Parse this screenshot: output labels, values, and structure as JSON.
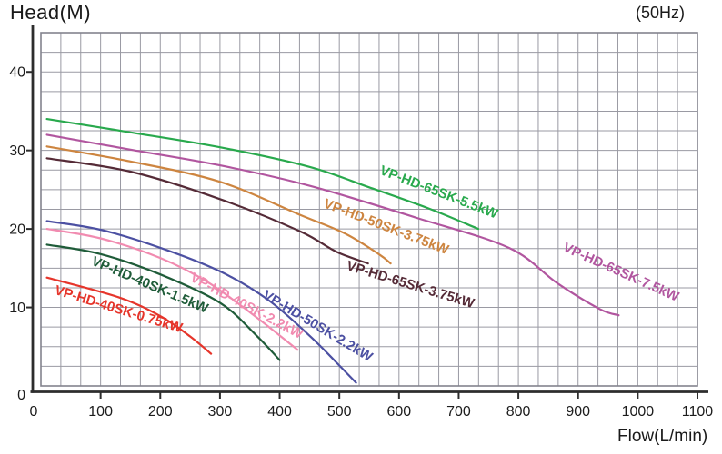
{
  "header": {
    "y_axis_title": "Head(M)",
    "frequency": "(50Hz)",
    "x_axis_title": "Flow(L/min)"
  },
  "chart_data": {
    "type": "line",
    "title": "",
    "xlabel": "Flow(L/min)",
    "ylabel": "Head(M)",
    "frequency_note": "(50Hz)",
    "xlim": [
      0,
      1100
    ],
    "ylim": [
      0,
      45
    ],
    "x_ticks": [
      0,
      100,
      200,
      300,
      400,
      500,
      600,
      700,
      800,
      900,
      1000,
      1100
    ],
    "y_ticks": [
      0,
      10,
      20,
      30,
      40
    ],
    "grid": {
      "on": true,
      "minor_x_step": 33.333,
      "minor_y_step": 2.5,
      "grid_color": "#9a9aa3",
      "border_color": "#83838e"
    },
    "axis_color": "#2d2d2d",
    "text_color": "#1c1c1c",
    "series": [
      {
        "name": "VP-HD-65SK-5.5kW",
        "color": "#29a94d",
        "points": [
          [
            10,
            34
          ],
          [
            150,
            32.3
          ],
          [
            300,
            30.4
          ],
          [
            450,
            27.9
          ],
          [
            550,
            25.3
          ],
          [
            650,
            22.6
          ],
          [
            733,
            20
          ]
        ]
      },
      {
        "name": "VP-HD-65SK-7.5kW",
        "color": "#b1569f",
        "points": [
          [
            10,
            32
          ],
          [
            150,
            30.1
          ],
          [
            300,
            28.1
          ],
          [
            450,
            25.5
          ],
          [
            630,
            21.4
          ],
          [
            784,
            17.6
          ],
          [
            865,
            13.1
          ],
          [
            936,
            9.8
          ],
          [
            968,
            9
          ]
        ]
      },
      {
        "name": "VP-HD-50SK-3.75kW",
        "color": "#cd8540",
        "points": [
          [
            10,
            30.5
          ],
          [
            150,
            28.6
          ],
          [
            300,
            26.0
          ],
          [
            434,
            21.8
          ],
          [
            510,
            19.4
          ],
          [
            566,
            16.8
          ],
          [
            586,
            15.6
          ]
        ]
      },
      {
        "name": "VP-HD-65SK-3.75kW",
        "color": "#552b37",
        "points": [
          [
            10,
            29
          ],
          [
            150,
            27.3
          ],
          [
            300,
            23.8
          ],
          [
            434,
            19.7
          ],
          [
            495,
            17.1
          ],
          [
            548,
            15.6
          ]
        ]
      },
      {
        "name": "VP-HD-50SK-2.2kW",
        "color": "#4c50a2",
        "points": [
          [
            10,
            21
          ],
          [
            100,
            19.9
          ],
          [
            200,
            17.6
          ],
          [
            300,
            14.6
          ],
          [
            380,
            11
          ],
          [
            450,
            6.4
          ],
          [
            495,
            3
          ],
          [
            528,
            0.4
          ]
        ]
      },
      {
        "name": "VP-HD-40SK-2.2kW",
        "color": "#f18bb0",
        "points": [
          [
            10,
            20
          ],
          [
            100,
            18.8
          ],
          [
            200,
            16.3
          ],
          [
            280,
            13.2
          ],
          [
            360,
            8.8
          ],
          [
            430,
            4.6
          ]
        ]
      },
      {
        "name": "VP-HD-40SK-1.5kW",
        "color": "#1f5c39",
        "points": [
          [
            10,
            18
          ],
          [
            100,
            16.8
          ],
          [
            200,
            14.2
          ],
          [
            300,
            10.6
          ],
          [
            360,
            6.5
          ],
          [
            400,
            3.3
          ]
        ]
      },
      {
        "name": "VP-HD-40SK-0.75kW",
        "color": "#e6352b",
        "points": [
          [
            10,
            13.8
          ],
          [
            130,
            11.3
          ],
          [
            200,
            8.9
          ],
          [
            250,
            6.3
          ],
          [
            285,
            4.1
          ]
        ]
      }
    ]
  }
}
